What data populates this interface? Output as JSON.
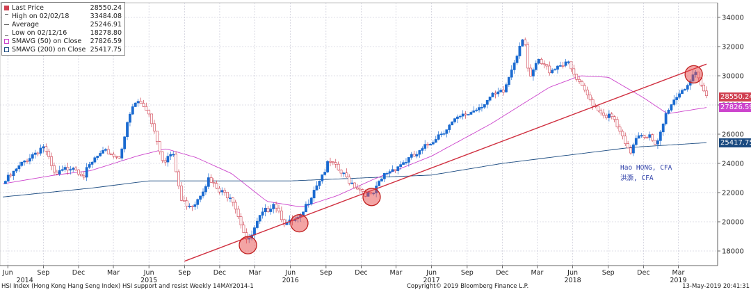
{
  "chart_data": {
    "type": "candlestick",
    "y_axis": {
      "min": 17000,
      "max": 35000,
      "ticks": [
        18000,
        20000,
        22000,
        24000,
        26000,
        28000,
        30000,
        32000,
        34000
      ],
      "position": "right"
    },
    "x_axis": {
      "start": "2014-05-19",
      "end": "2019-05-13",
      "month_ticks": [
        {
          "label": "Jun",
          "date": "2014-06-01"
        },
        {
          "label": "Sep",
          "date": "2014-09-01"
        },
        {
          "label": "Dec",
          "date": "2014-12-01"
        },
        {
          "label": "Mar",
          "date": "2015-03-01"
        },
        {
          "label": "Jun",
          "date": "2015-06-01"
        },
        {
          "label": "Sep",
          "date": "2015-09-01"
        },
        {
          "label": "Dec",
          "date": "2015-12-01"
        },
        {
          "label": "Mar",
          "date": "2016-03-01"
        },
        {
          "label": "Jun",
          "date": "2016-06-01"
        },
        {
          "label": "Sep",
          "date": "2016-09-01"
        },
        {
          "label": "Dec",
          "date": "2016-12-01"
        },
        {
          "label": "Mar",
          "date": "2017-03-01"
        },
        {
          "label": "Jun",
          "date": "2017-06-01"
        },
        {
          "label": "Sep",
          "date": "2017-09-01"
        },
        {
          "label": "Dec",
          "date": "2017-12-01"
        },
        {
          "label": "Mar",
          "date": "2018-03-01"
        },
        {
          "label": "Jun",
          "date": "2018-06-01"
        },
        {
          "label": "Sep",
          "date": "2018-09-01"
        },
        {
          "label": "Dec",
          "date": "2018-12-01"
        },
        {
          "label": "Mar",
          "date": "2019-03-01"
        }
      ],
      "year_ticks": [
        {
          "label": "2014",
          "date": "2014-07-15"
        },
        {
          "label": "2015",
          "date": "2015-06-01"
        },
        {
          "label": "2016",
          "date": "2016-06-01"
        },
        {
          "label": "2017",
          "date": "2017-06-01"
        },
        {
          "label": "2018",
          "date": "2018-06-01"
        },
        {
          "label": "2019",
          "date": "2019-03-01"
        }
      ]
    },
    "price_keypoints": [
      [
        "2014-05-19",
        22600
      ],
      [
        "2014-06-15",
        23300
      ],
      [
        "2014-07-20",
        24300
      ],
      [
        "2014-09-01",
        25200
      ],
      [
        "2014-10-01",
        23100
      ],
      [
        "2014-11-15",
        23900
      ],
      [
        "2014-12-15",
        23200
      ],
      [
        "2015-01-15",
        24400
      ],
      [
        "2015-02-15",
        24800
      ],
      [
        "2015-03-15",
        24400
      ],
      [
        "2015-04-15",
        27500
      ],
      [
        "2015-05-01",
        28300
      ],
      [
        "2015-06-01",
        27500
      ],
      [
        "2015-07-08",
        24200
      ],
      [
        "2015-08-01",
        24700
      ],
      [
        "2015-08-25",
        21300
      ],
      [
        "2015-09-25",
        21200
      ],
      [
        "2015-11-01",
        22900
      ],
      [
        "2015-12-01",
        22000
      ],
      [
        "2016-01-01",
        21800
      ],
      [
        "2016-02-01",
        19400
      ],
      [
        "2016-02-12",
        18500
      ],
      [
        "2016-03-15",
        20300
      ],
      [
        "2016-04-20",
        21400
      ],
      [
        "2016-05-20",
        19800
      ],
      [
        "2016-06-27",
        20200
      ],
      [
        "2016-08-01",
        22300
      ],
      [
        "2016-09-10",
        24100
      ],
      [
        "2016-10-15",
        23200
      ],
      [
        "2016-11-15",
        22500
      ],
      [
        "2016-12-28",
        21700
      ],
      [
        "2017-02-01",
        23300
      ],
      [
        "2017-03-15",
        24000
      ],
      [
        "2017-05-01",
        24700
      ],
      [
        "2017-06-15",
        25900
      ],
      [
        "2017-08-01",
        26900
      ],
      [
        "2017-09-15",
        27600
      ],
      [
        "2017-11-01",
        28500
      ],
      [
        "2017-12-05",
        28900
      ],
      [
        "2018-01-26",
        33000
      ],
      [
        "2018-02-09",
        29500
      ],
      [
        "2018-03-01",
        31000
      ],
      [
        "2018-04-01",
        30400
      ],
      [
        "2018-05-15",
        31000
      ],
      [
        "2018-06-15",
        29500
      ],
      [
        "2018-07-15",
        28400
      ],
      [
        "2018-08-15",
        27500
      ],
      [
        "2018-09-15",
        27000
      ],
      [
        "2018-10-26",
        24600
      ],
      [
        "2018-11-15",
        26100
      ],
      [
        "2018-12-15",
        25900
      ],
      [
        "2019-01-03",
        25000
      ],
      [
        "2019-02-01",
        27700
      ],
      [
        "2019-03-01",
        28800
      ],
      [
        "2019-04-15",
        30000
      ],
      [
        "2019-05-13",
        28550
      ]
    ],
    "sma50_keypoints": [
      [
        "2014-05-19",
        22600
      ],
      [
        "2014-10-01",
        23200
      ],
      [
        "2015-01-01",
        23500
      ],
      [
        "2015-05-01",
        24500
      ],
      [
        "2015-07-15",
        25000
      ],
      [
        "2015-10-01",
        24400
      ],
      [
        "2016-01-01",
        23300
      ],
      [
        "2016-04-01",
        21400
      ],
      [
        "2016-07-01",
        21000
      ],
      [
        "2016-10-01",
        21800
      ],
      [
        "2017-01-01",
        22900
      ],
      [
        "2017-06-01",
        24500
      ],
      [
        "2017-11-01",
        26700
      ],
      [
        "2018-04-01",
        29200
      ],
      [
        "2018-06-20",
        30000
      ],
      [
        "2018-09-01",
        29900
      ],
      [
        "2018-12-01",
        28500
      ],
      [
        "2019-02-01",
        27400
      ],
      [
        "2019-05-13",
        27826.59
      ]
    ],
    "sma200_keypoints": [
      [
        "2014-05-19",
        21700
      ],
      [
        "2015-01-01",
        22300
      ],
      [
        "2015-06-01",
        22800
      ],
      [
        "2016-06-01",
        22800
      ],
      [
        "2016-12-01",
        23000
      ],
      [
        "2017-06-01",
        23200
      ],
      [
        "2017-12-01",
        24000
      ],
      [
        "2018-06-01",
        24600
      ],
      [
        "2018-11-01",
        25100
      ],
      [
        "2019-05-13",
        25417.75
      ]
    ],
    "trendline": {
      "from": [
        "2015-09-01",
        17300
      ],
      "to": [
        "2019-05-13",
        30800
      ]
    },
    "highlight_points": [
      [
        "2016-02-12",
        18400
      ],
      [
        "2016-06-24",
        19900
      ],
      [
        "2016-12-28",
        21700
      ],
      [
        "2019-04-10",
        30100
      ]
    ],
    "colors": {
      "up_candle": "#1a6ad0",
      "down_candle": "#ffffff",
      "down_outline": "#d04050",
      "sma50": "#cc44cc",
      "sma200": "#1a4a80",
      "trendline": "#d03040",
      "circle_fill": "#e84a4a",
      "grid": "#c0c0d0"
    },
    "right_labels": [
      {
        "value": 28550.24,
        "text": "28550.24",
        "color": "#d04050"
      },
      {
        "value": 27826.59,
        "text": "27826.59",
        "color": "#cc44cc"
      },
      {
        "value": 25417.75,
        "text": "25417.75",
        "color": "#1a4a80"
      }
    ]
  },
  "legend": [
    {
      "icon": "red-square-icon",
      "label": "Last Price",
      "value": "28550.24"
    },
    {
      "icon": "high-marker-icon",
      "label": "High on 02/02/18",
      "value": "33484.08"
    },
    {
      "icon": "average-marker-icon",
      "label": "Average",
      "value": "25246.91"
    },
    {
      "icon": "low-marker-icon",
      "label": "Low on 02/12/16",
      "value": "18278.80"
    },
    {
      "icon": "sma50-swatch-icon",
      "label": "SMAVG (50)  on Close",
      "value": "27826.59"
    },
    {
      "icon": "sma200-swatch-icon",
      "label": "SMAVG (200)  on Close",
      "value": "25417.75"
    }
  ],
  "annotation": {
    "line1": "Hao HONG, CFA",
    "line2": "洪灏, CFA"
  },
  "footer": {
    "left": "HSI Index (Hong Kong Hang Seng Index) HSI support and resist  Weekly 14MAY2014-1",
    "center": "Copyright© 2019 Bloomberg Finance L.P.",
    "right": "13-May-2019 20:41:31"
  }
}
